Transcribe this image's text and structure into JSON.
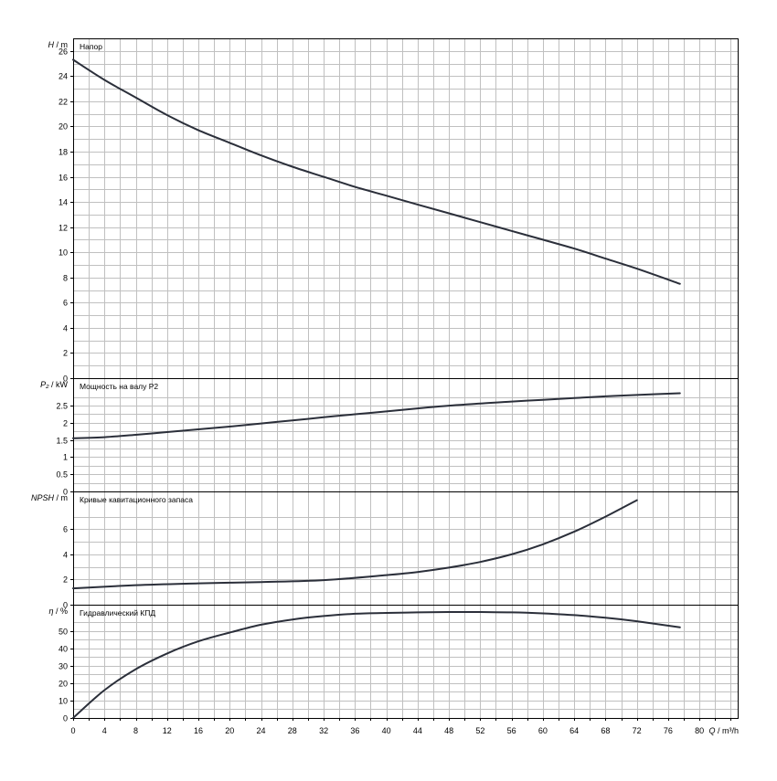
{
  "colors": {
    "curve": "#2b2f3a",
    "grid": "#c0c0c0",
    "frame": "#000000"
  },
  "chart_data": [
    {
      "type": "line",
      "title": "Напор",
      "ylabel_var": "H",
      "ylabel_unit": "m",
      "ylim": [
        0,
        27
      ],
      "yticks": [
        0,
        2,
        4,
        6,
        8,
        10,
        12,
        14,
        16,
        18,
        20,
        22,
        24,
        26
      ],
      "series": [
        {
          "x": [
            0,
            4,
            8,
            12,
            16,
            20,
            24,
            28,
            32,
            36,
            40,
            44,
            48,
            52,
            56,
            60,
            64,
            68,
            72,
            77.5
          ],
          "y": [
            25.3,
            23.7,
            22.3,
            20.9,
            19.7,
            18.7,
            17.7,
            16.8,
            16.0,
            15.2,
            14.5,
            13.8,
            13.1,
            12.4,
            11.7,
            11.0,
            10.3,
            9.5,
            8.7,
            7.5
          ]
        }
      ]
    },
    {
      "type": "line",
      "title": "Мощность на валу P2",
      "ylabel_var": "P₂",
      "ylabel_unit": "kW",
      "ylim": [
        0,
        3.3
      ],
      "yticks": [
        0,
        0.5,
        1,
        1.5,
        2,
        2.5
      ],
      "yticklabels": [
        "0",
        "0.5",
        "1",
        "1.5",
        "2",
        "2.5"
      ],
      "series": [
        {
          "x": [
            0,
            4,
            8,
            12,
            16,
            20,
            24,
            28,
            32,
            36,
            40,
            44,
            48,
            52,
            56,
            60,
            64,
            68,
            72,
            77.5
          ],
          "y": [
            1.55,
            1.58,
            1.65,
            1.73,
            1.81,
            1.89,
            1.98,
            2.07,
            2.16,
            2.25,
            2.33,
            2.42,
            2.5,
            2.56,
            2.62,
            2.67,
            2.72,
            2.77,
            2.81,
            2.86
          ]
        }
      ]
    },
    {
      "type": "line",
      "title": "Кривые кавитационного запаса",
      "ylabel_var": "NPSH",
      "ylabel_unit": "m",
      "ylim": [
        0,
        9
      ],
      "yticks": [
        0,
        2,
        4,
        6
      ],
      "series": [
        {
          "x": [
            0,
            8,
            16,
            24,
            32,
            40,
            44,
            48,
            52,
            56,
            60,
            64,
            68,
            72
          ],
          "y": [
            1.3,
            1.55,
            1.7,
            1.8,
            1.95,
            2.35,
            2.6,
            2.95,
            3.4,
            4.0,
            4.8,
            5.8,
            7.0,
            8.3
          ]
        }
      ]
    },
    {
      "type": "line",
      "title": "Гидравлический КПД",
      "ylabel_var": "η",
      "ylabel_unit": "%",
      "ylim": [
        0,
        65
      ],
      "yticks": [
        0,
        10,
        20,
        30,
        40,
        50
      ],
      "series": [
        {
          "x": [
            0,
            4,
            8,
            12,
            16,
            20,
            24,
            28,
            32,
            36,
            40,
            44,
            48,
            52,
            56,
            60,
            64,
            68,
            72,
            77.5
          ],
          "y": [
            0,
            16,
            28,
            37,
            44,
            49,
            53.5,
            56.5,
            58.5,
            59.8,
            60.3,
            60.6,
            60.8,
            60.8,
            60.6,
            60.0,
            59.0,
            57.5,
            55.5,
            52
          ]
        }
      ]
    }
  ],
  "x_axis": {
    "var": "Q",
    "unit": "m³/h",
    "xlim": [
      0,
      85
    ],
    "ticks": [
      0,
      4,
      8,
      12,
      16,
      20,
      24,
      28,
      32,
      36,
      40,
      44,
      48,
      52,
      56,
      60,
      64,
      68,
      72,
      76,
      80
    ],
    "minor_step": 2
  }
}
